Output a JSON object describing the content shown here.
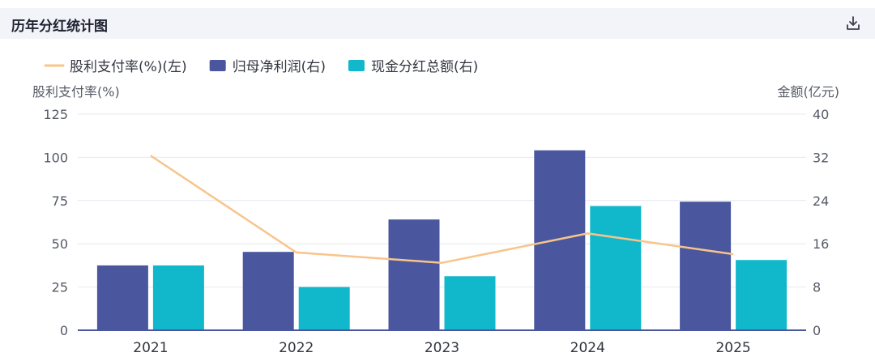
{
  "header": {
    "title": "历年分红统计图"
  },
  "chart_data": {
    "type": "bar",
    "categories": [
      "2021",
      "2022",
      "2023",
      "2024",
      "2025"
    ],
    "series": [
      {
        "name": "股利支付率(%)(左)",
        "type": "line",
        "axis": "left",
        "color": "#f9c48a",
        "values": [
          101,
          45,
          39,
          56,
          44
        ]
      },
      {
        "name": "归母净利润(右)",
        "type": "bar",
        "axis": "right",
        "color": "#4a579e",
        "values": [
          12,
          14.5,
          20.5,
          33.3,
          23.8
        ]
      },
      {
        "name": "现金分红总额(右)",
        "type": "bar",
        "axis": "right",
        "color": "#11b8cb",
        "values": [
          12,
          8,
          10,
          23,
          13
        ]
      }
    ],
    "y_left": {
      "label": "股利支付率(%)",
      "min": 0,
      "max": 125,
      "ticks": [
        "0",
        "25",
        "50",
        "75",
        "100",
        "125"
      ]
    },
    "y_right": {
      "label": "金额(亿元)",
      "min": 0,
      "max": 40,
      "ticks": [
        "0",
        "8",
        "16",
        "24",
        "32",
        "40"
      ]
    },
    "grid": true,
    "legend": "top-left"
  }
}
